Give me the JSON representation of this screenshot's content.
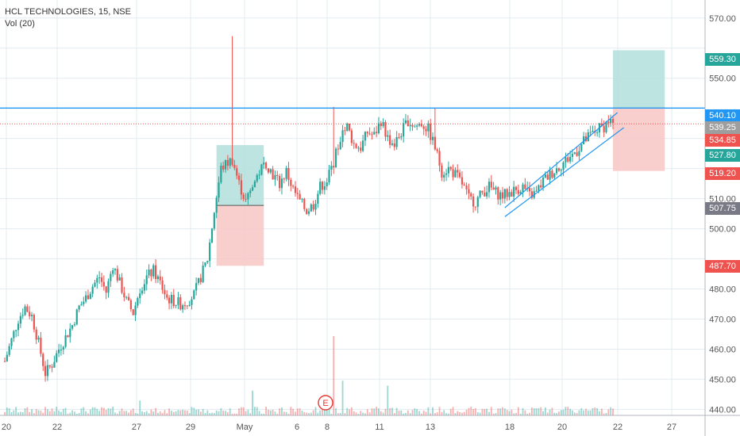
{
  "header": {
    "symbol_line": "HCL TECHNOLOGIES, 15, NSE",
    "indicator_line": "Vol (20)"
  },
  "colors": {
    "background": "#ffffff",
    "grid": "#e1ecf2",
    "candle_up": "#26a69a",
    "candle_down": "#ef5350",
    "resistance_line": "#2196f3",
    "channel": "#2196f3",
    "last_price_line": "#ef5350",
    "target_zone": "#b2dfdb",
    "stop_zone": "#f8c7c5",
    "event_marker": "#e53935"
  },
  "event_marker": {
    "label": "E"
  },
  "price_axis": {
    "labels": [
      "570.00",
      "550.00",
      "510.00",
      "500.00",
      "480.00",
      "470.00",
      "460.00",
      "450.00",
      "440.00"
    ],
    "tags": [
      {
        "label": "559.30",
        "color": "#26a69a"
      },
      {
        "label": "540.10",
        "color": "#2196f3"
      },
      {
        "label": "539.25",
        "color": "#9e9e9e"
      },
      {
        "label": "534.85",
        "color": "#ef5350"
      },
      {
        "label": "527.80",
        "color": "#26a69a"
      },
      {
        "label": "519.20",
        "color": "#ef5350"
      },
      {
        "label": "507.75",
        "color": "#787b86"
      },
      {
        "label": "487.70",
        "color": "#ef5350"
      }
    ]
  },
  "time_axis": {
    "labels": [
      "20",
      "22",
      "27",
      "29",
      "May",
      "6",
      "8",
      "11",
      "13",
      "18",
      "20",
      "22",
      "27"
    ]
  },
  "chart_data": {
    "type": "candlestick",
    "title": "HCL TECHNOLOGIES, 15, NSE",
    "ylim": [
      438,
      576
    ],
    "resistance": 540.1,
    "last_price": 534.85,
    "long_position_1": {
      "target": 527.8,
      "entry": 507.75,
      "stop": 487.7
    },
    "long_position_2": {
      "target": 559.3,
      "entry": 540.1,
      "stop": 519.2
    },
    "rising_channel": {
      "start": 507,
      "end": 536
    },
    "price_path": [
      [
        0,
        456
      ],
      [
        3,
        463
      ],
      [
        6,
        470
      ],
      [
        9,
        474
      ],
      [
        12,
        471
      ],
      [
        15,
        462
      ],
      [
        18,
        452
      ],
      [
        21,
        455
      ],
      [
        24,
        460
      ],
      [
        27,
        464
      ],
      [
        30,
        468
      ],
      [
        33,
        474
      ],
      [
        36,
        477
      ],
      [
        39,
        481
      ],
      [
        42,
        484
      ],
      [
        45,
        479
      ],
      [
        48,
        488
      ],
      [
        51,
        482
      ],
      [
        54,
        476
      ],
      [
        57,
        472
      ],
      [
        60,
        480
      ],
      [
        63,
        484
      ],
      [
        66,
        486
      ],
      [
        69,
        482
      ],
      [
        72,
        477
      ],
      [
        75,
        476
      ],
      [
        78,
        475
      ],
      [
        81,
        476
      ],
      [
        84,
        478
      ],
      [
        87,
        484
      ],
      [
        90,
        490
      ],
      [
        93,
        506
      ],
      [
        96,
        520
      ],
      [
        99,
        522
      ],
      [
        101,
        523
      ],
      [
        104,
        515
      ],
      [
        107,
        509
      ],
      [
        110,
        514
      ],
      [
        113,
        519
      ],
      [
        116,
        522
      ],
      [
        119,
        518
      ],
      [
        122,
        515
      ],
      [
        125,
        519
      ],
      [
        128,
        513
      ],
      [
        131,
        509
      ],
      [
        134,
        506
      ],
      [
        137,
        508
      ],
      [
        140,
        514
      ],
      [
        143,
        516
      ],
      [
        146,
        522
      ],
      [
        149,
        530
      ],
      [
        152,
        534
      ],
      [
        155,
        528
      ],
      [
        158,
        527
      ],
      [
        161,
        532
      ],
      [
        164,
        531
      ],
      [
        167,
        536
      ],
      [
        170,
        530
      ],
      [
        173,
        528
      ],
      [
        176,
        532
      ],
      [
        179,
        536
      ],
      [
        182,
        534
      ],
      [
        185,
        535
      ],
      [
        188,
        533
      ],
      [
        191,
        527
      ],
      [
        194,
        519
      ],
      [
        197,
        520
      ],
      [
        200,
        518
      ],
      [
        203,
        515
      ],
      [
        206,
        510
      ],
      [
        209,
        509
      ],
      [
        212,
        512
      ],
      [
        215,
        514
      ],
      [
        218,
        512
      ],
      [
        221,
        511
      ],
      [
        224,
        512
      ],
      [
        227,
        513
      ],
      [
        230,
        514
      ],
      [
        233,
        511
      ],
      [
        236,
        512
      ],
      [
        239,
        516
      ],
      [
        242,
        518
      ],
      [
        245,
        520
      ],
      [
        248,
        522
      ],
      [
        251,
        524
      ],
      [
        254,
        526
      ],
      [
        257,
        529
      ],
      [
        260,
        531
      ],
      [
        263,
        533
      ],
      [
        266,
        534
      ],
      [
        268,
        536
      ],
      [
        270,
        535
      ]
    ],
    "volume_spikes": [
      [
        146,
        80
      ],
      [
        150,
        35
      ],
      [
        170,
        30
      ],
      [
        110,
        25
      ],
      [
        60,
        15
      ]
    ]
  }
}
